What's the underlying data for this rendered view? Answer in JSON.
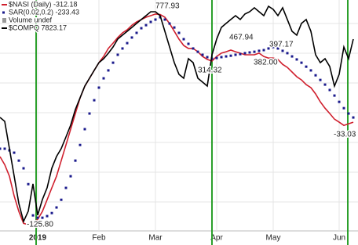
{
  "chart_data": {
    "type": "line",
    "legend": [
      "Volume undef"
    ],
    "categories": [
      null,
      null,
      null,
      null,
      null,
      null,
      null,
      null,
      "2019",
      null,
      null,
      null,
      null,
      null,
      null,
      null,
      null,
      null,
      null,
      null,
      null,
      "Feb",
      null,
      null,
      null,
      null,
      null,
      null,
      null,
      null,
      null,
      null,
      null,
      "Mar",
      null,
      null,
      null,
      null,
      null,
      null,
      null,
      null,
      null,
      null,
      null,
      null,
      "Apr",
      null,
      null,
      null,
      null,
      null,
      null,
      null,
      null,
      null,
      null,
      null,
      "May",
      null,
      null,
      null,
      null,
      null,
      null,
      null,
      null,
      null,
      null,
      null,
      null,
      null,
      "Jun",
      null,
      null,
      null
    ],
    "ylim": [
      -213,
      838
    ],
    "y2lim": [
      6284,
      8116
    ],
    "series": [
      {
        "name": "$NASI (Daily) -312.18",
        "color": "#d0202e",
        "style": "line",
        "values": [
          166,
          132,
          82,
          -2,
          -69,
          -120,
          -125.8,
          -120,
          -103,
          -69,
          -19,
          32,
          82,
          149,
          216,
          284,
          351,
          418,
          468,
          502,
          536,
          569,
          596,
          630,
          653,
          677,
          697,
          710,
          730,
          744,
          754,
          764,
          771,
          777.93,
          776,
          764,
          737,
          704,
          670,
          643,
          630,
          630,
          616,
          596,
          583,
          576,
          596,
          610,
          616,
          623,
          616,
          610,
          603,
          603,
          603,
          610,
          596,
          589,
          589,
          583,
          562,
          549,
          529,
          509,
          495,
          475,
          462,
          435,
          401,
          374,
          351,
          327,
          314,
          300,
          307,
          314
        ]
      },
      {
        "name": "SAR(0.02,0.2) -233.43",
        "color": "#1a1a8c",
        "style": "dots",
        "values": [
          200,
          200,
          193,
          183,
          149,
          116,
          48,
          -86,
          -96,
          -96,
          -89,
          -76,
          -52,
          -19,
          32,
          82,
          149,
          216,
          284,
          351,
          408,
          462,
          502,
          536,
          569,
          603,
          630,
          653,
          677,
          697,
          717,
          730,
          744,
          754,
          764,
          754,
          737,
          720,
          697,
          670,
          650,
          630,
          616,
          603,
          593,
          586,
          589,
          593,
          596,
          599,
          603,
          606,
          610,
          613,
          616,
          620,
          623,
          630,
          636,
          630,
          620,
          610,
          596,
          583,
          569,
          552,
          536,
          515,
          495,
          475,
          452,
          428,
          401,
          374,
          351,
          334
        ]
      },
      {
        "name": "$COMPQ 7823.17",
        "color": "#000000",
        "style": "line",
        "axis": "y2",
        "values": [
          7238,
          7209,
          7005,
          6800,
          6595,
          6460,
          6537,
          6741,
          6507,
          6624,
          6712,
          6858,
          6946,
          7005,
          7092,
          7180,
          7297,
          7385,
          7472,
          7531,
          7590,
          7648,
          7677,
          7718,
          7765,
          7824,
          7853,
          7882,
          7911,
          7941,
          7970,
          7999,
          8028,
          8028,
          7999,
          7882,
          7765,
          7648,
          7560,
          7531,
          7677,
          7648,
          7531,
          7502,
          7472,
          7706,
          7824,
          7911,
          7941,
          7970,
          7999,
          7970,
          8011,
          8028,
          8058,
          8028,
          7999,
          8069,
          8046,
          7999,
          8058,
          7970,
          7882,
          7853,
          7941,
          7970,
          7882,
          7706,
          7648,
          7677,
          7619,
          7472,
          7560,
          7765,
          7677,
          7823.17
        ]
      }
    ],
    "annotations": [
      "777.93",
      "467.94",
      "397.17",
      "314.32",
      "382.00",
      "-125.80",
      "-33.03"
    ]
  }
}
